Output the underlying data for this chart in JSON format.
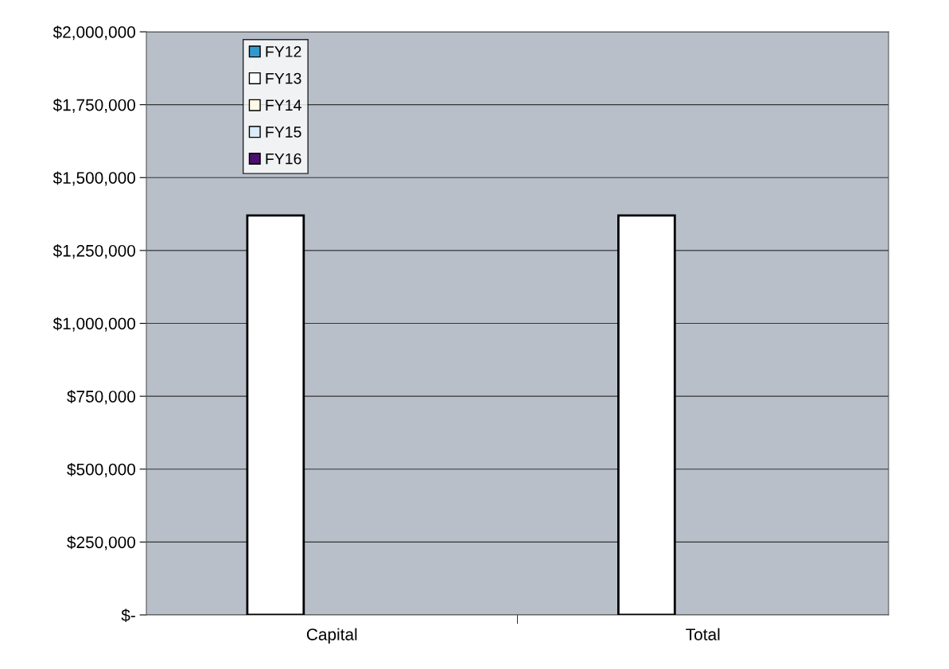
{
  "chart_data": {
    "type": "bar",
    "categories": [
      "Capital",
      "Total"
    ],
    "series": [
      {
        "name": "FY12",
        "color": "#3399cc",
        "values": [
          null,
          null
        ]
      },
      {
        "name": "FY13",
        "color": "#ffffff",
        "values": [
          1370000,
          1370000
        ]
      },
      {
        "name": "FY14",
        "color": "#fffbe6",
        "values": [
          null,
          null
        ]
      },
      {
        "name": "FY15",
        "color": "#dcecfa",
        "values": [
          null,
          null
        ]
      },
      {
        "name": "FY16",
        "color": "#4b0f6e",
        "values": [
          null,
          null
        ]
      }
    ],
    "ylim": [
      0,
      2000000
    ],
    "yticks": [
      {
        "value": 0,
        "label": "$-"
      },
      {
        "value": 250000,
        "label": "$250,000"
      },
      {
        "value": 500000,
        "label": "$500,000"
      },
      {
        "value": 750000,
        "label": "$750,000"
      },
      {
        "value": 1000000,
        "label": "$1,000,000"
      },
      {
        "value": 1250000,
        "label": "$1,250,000"
      },
      {
        "value": 1500000,
        "label": "$1,500,000"
      },
      {
        "value": 1750000,
        "label": "$1,750,000"
      },
      {
        "value": 2000000,
        "label": "$2,000,000"
      }
    ],
    "grid": "y",
    "legend": "top left"
  }
}
